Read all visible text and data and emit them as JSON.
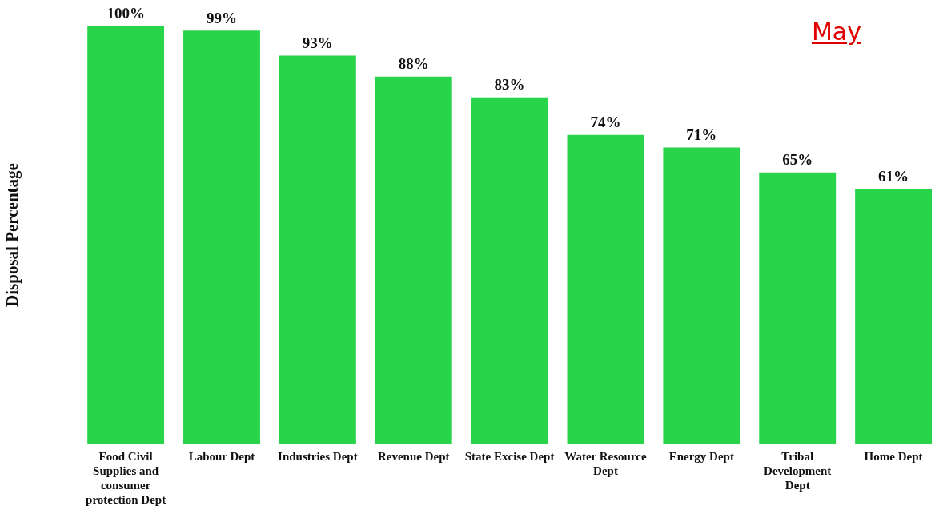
{
  "chart_data": {
    "type": "bar",
    "title": "May",
    "ylabel": "Disposal Percentage",
    "categories": [
      "Food Civil Supplies and consumer protection Dept",
      "Labour Dept",
      "Industries Dept",
      "Revenue Dept",
      "State Excise Dept",
      "Water Resource Dept",
      "Energy Dept",
      "Tribal Development Dept",
      "Home Dept"
    ],
    "values": [
      100,
      99,
      93,
      88,
      83,
      74,
      71,
      65,
      61
    ],
    "value_labels": [
      "100%",
      "99%",
      "93%",
      "88%",
      "83%",
      "74%",
      "71%",
      "65%",
      "61%"
    ],
    "color": "#28d44a",
    "grid": false,
    "legend": false
  }
}
